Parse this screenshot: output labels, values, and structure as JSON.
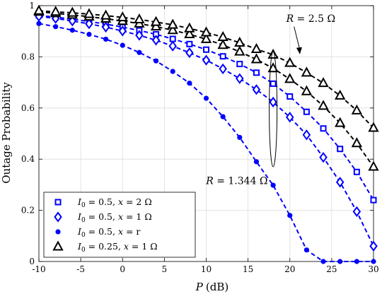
{
  "chart_data": {
    "type": "line",
    "xlabel_var": "P",
    "xlabel_unit": "(dB)",
    "ylabel": "Outage Probability",
    "xlim": [
      -10,
      30
    ],
    "ylim": [
      0,
      1
    ],
    "x_ticks": [
      -10,
      -5,
      0,
      5,
      10,
      15,
      20,
      25,
      30
    ],
    "y_ticks": [
      0,
      0.2,
      0.4,
      0.6,
      0.8,
      1
    ],
    "x_tick_labels": [
      "-10",
      "-5",
      "0",
      "5",
      "10",
      "15",
      "20",
      "25",
      "30"
    ],
    "y_tick_labels": [
      "0",
      "0.2",
      "0.4",
      "0.6",
      "0.8",
      "1"
    ],
    "grid": true,
    "legend_position": "bottom-left",
    "series": [
      {
        "name": "I_0 = 0.5, x = 2 Ω",
        "legend_parts": {
          "i0": "I",
          "sub": "0",
          "rest": " = 0.5, ",
          "xv": "x",
          "tail": " = 2 Ω"
        },
        "color": "#0000ff",
        "marker": "square",
        "x": [
          -10,
          -8,
          -6,
          -4,
          -2,
          0,
          2,
          4,
          6,
          8,
          10,
          12,
          14,
          16,
          18,
          20,
          22,
          24,
          26,
          28,
          30
        ],
        "y": [
          0.962,
          0.955,
          0.947,
          0.938,
          0.928,
          0.916,
          0.903,
          0.888,
          0.87,
          0.85,
          0.828,
          0.802,
          0.772,
          0.738,
          0.695,
          0.645,
          0.585,
          0.52,
          0.44,
          0.35,
          0.24
        ]
      },
      {
        "name": "I_0 = 0.5, x = 1 Ω",
        "legend_parts": {
          "i0": "I",
          "sub": "0",
          "rest": " = 0.5, ",
          "xv": "x",
          "tail": " = 1 Ω"
        },
        "color": "#0000ff",
        "marker": "diamond",
        "x": [
          -10,
          -8,
          -6,
          -4,
          -2,
          0,
          2,
          4,
          6,
          8,
          10,
          12,
          14,
          16,
          18,
          20,
          22,
          24,
          26,
          28,
          30
        ],
        "y": [
          0.958,
          0.95,
          0.94,
          0.929,
          0.916,
          0.901,
          0.884,
          0.865,
          0.842,
          0.816,
          0.787,
          0.753,
          0.715,
          0.672,
          0.623,
          0.564,
          0.495,
          0.407,
          0.31,
          0.195,
          0.06
        ]
      },
      {
        "name": "I_0 = 0.5, x = r",
        "legend_parts": {
          "i0": "I",
          "sub": "0",
          "rest": " = 0.5, ",
          "xv": "x",
          "tail": " = r"
        },
        "color": "#0000ff",
        "marker": "circle",
        "x": [
          -10,
          -8,
          -6,
          -4,
          -2,
          0,
          2,
          4,
          6,
          8,
          10,
          12,
          14,
          16,
          18,
          20,
          22,
          24,
          26,
          28,
          30
        ],
        "y": [
          0.93,
          0.918,
          0.904,
          0.888,
          0.869,
          0.845,
          0.817,
          0.784,
          0.743,
          0.697,
          0.638,
          0.566,
          0.485,
          0.39,
          0.298,
          0.18,
          0.045,
          0.0,
          0.0,
          0.0,
          0.0
        ]
      },
      {
        "name": "I_0 = 0.25, x = 1 Ω",
        "legend_parts": {
          "i0": "I",
          "sub": "0",
          "rest": " = 0.25, ",
          "xv": "x",
          "tail": " = 1 Ω"
        },
        "color": "#000000",
        "marker": "triangle",
        "x": [
          -10,
          -8,
          -6,
          -4,
          -2,
          0,
          2,
          4,
          6,
          8,
          10,
          12,
          14,
          16,
          18,
          20,
          22,
          24,
          26,
          28,
          30
        ],
        "y": [
          0.976,
          0.97,
          0.964,
          0.957,
          0.949,
          0.94,
          0.93,
          0.918,
          0.904,
          0.888,
          0.869,
          0.846,
          0.82,
          0.79,
          0.755,
          0.713,
          0.665,
          0.608,
          0.541,
          0.462,
          0.37
        ]
      }
    ],
    "extra_series": [
      {
        "legend_visible": false,
        "color": "#000000",
        "marker": "triangle",
        "x": [
          -10,
          -8,
          -6,
          -4,
          -2,
          0,
          2,
          4,
          6,
          8,
          10,
          12,
          14,
          16,
          18,
          20,
          22,
          24,
          26,
          28,
          30
        ],
        "y": [
          0.98,
          0.976,
          0.972,
          0.967,
          0.961,
          0.954,
          0.946,
          0.936,
          0.925,
          0.911,
          0.895,
          0.877,
          0.855,
          0.83,
          0.808,
          0.776,
          0.738,
          0.697,
          0.648,
          0.59,
          0.522
        ]
      }
    ],
    "annotations": {
      "r25": {
        "label": "R = 2.5 Ω",
        "var": "R",
        "rest": " = 2.5 Ω",
        "text_at": [
          22.5,
          0.936
        ],
        "arrow_from": [
          20.5,
          0.918
        ],
        "arrow_to": [
          21.2,
          0.81
        ]
      },
      "r1344": {
        "label": "R = 1.344 Ω",
        "var": "R",
        "rest": " = 1.344 Ω",
        "text_at": [
          17.7,
          0.335
        ],
        "ellipse_center": [
          18,
          0.595
        ],
        "ellipse_ry": 0.225
      }
    }
  }
}
